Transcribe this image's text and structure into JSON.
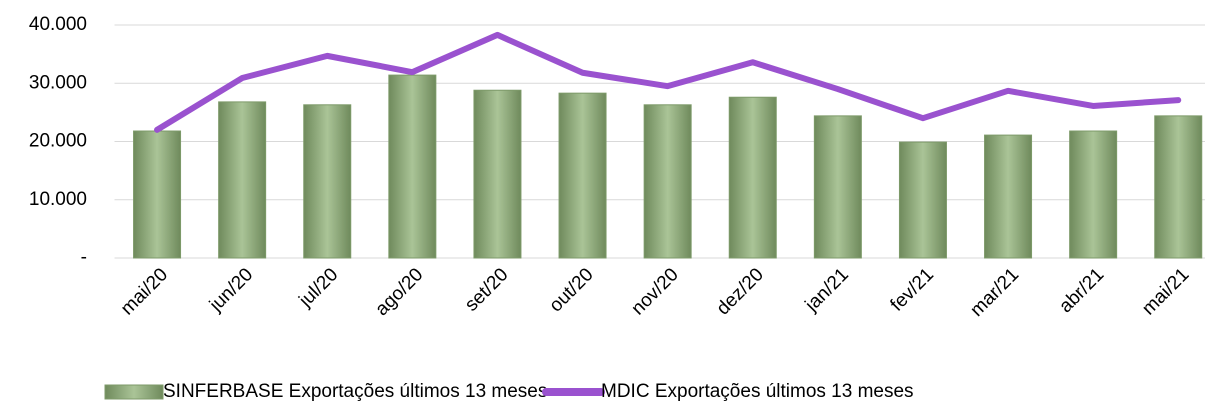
{
  "chart_data": {
    "type": "bar_line",
    "categories": [
      "mai/20",
      "jun/20",
      "jul/20",
      "ago/20",
      "set/20",
      "out/20",
      "nov/20",
      "dez/20",
      "jan/21",
      "fev/21",
      "mar/21",
      "abr/21",
      "mai/21"
    ],
    "series": [
      {
        "name": "SINFERBASE Exportações últimos 13 meses",
        "type": "bar",
        "color": "#9bb386",
        "values": [
          21800,
          26800,
          26300,
          31400,
          28800,
          28300,
          26300,
          27600,
          24400,
          19900,
          21100,
          21800,
          24400
        ]
      },
      {
        "name": "MDIC Exportações últimos 13 meses",
        "type": "line",
        "color": "#9a52cf",
        "values": [
          22000,
          30900,
          34700,
          31900,
          38300,
          31800,
          29500,
          33600,
          29000,
          24000,
          28700,
          26100,
          27100
        ]
      }
    ],
    "ylim": [
      0,
      40000
    ],
    "yticks": [
      {
        "value": 0,
        "label": "-"
      },
      {
        "value": 10000,
        "label": "10.000"
      },
      {
        "value": 20000,
        "label": "20.000"
      },
      {
        "value": 30000,
        "label": "30.000"
      },
      {
        "value": 40000,
        "label": "40.000"
      }
    ],
    "grid": true,
    "legend": "bottom"
  }
}
